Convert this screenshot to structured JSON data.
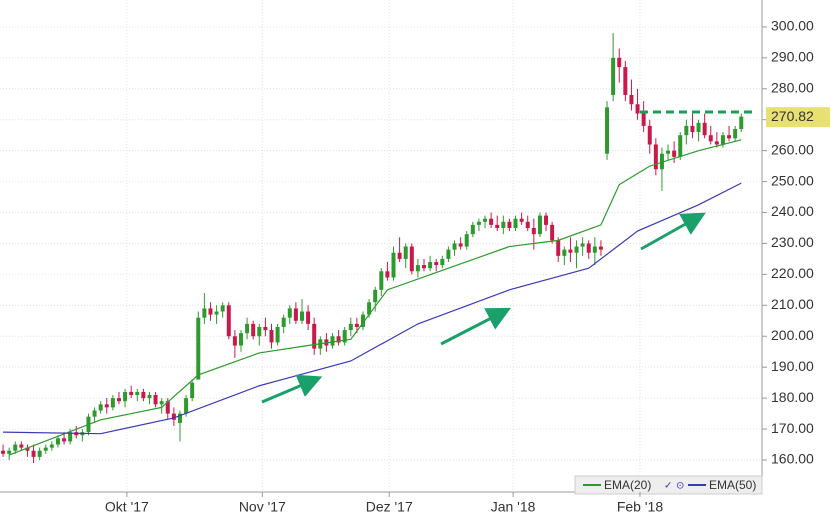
{
  "chart_data": {
    "type": "candlestick",
    "up_color": "#2e9a2e",
    "down_color": "#c8194b",
    "ylim": [
      149.65,
      308.7
    ],
    "yticks": [
      {
        "value": 160,
        "label": "160.00"
      },
      {
        "value": 170,
        "label": "170.00"
      },
      {
        "value": 180,
        "label": "180.00"
      },
      {
        "value": 190,
        "label": "190.00"
      },
      {
        "value": 200,
        "label": "200.00"
      },
      {
        "value": 210,
        "label": "210.00"
      },
      {
        "value": 220,
        "label": "220.00"
      },
      {
        "value": 230,
        "label": "230.00"
      },
      {
        "value": 240,
        "label": "240.00"
      },
      {
        "value": 250,
        "label": "250.00"
      },
      {
        "value": 260,
        "label": "260.00"
      },
      {
        "value": 270,
        "label": "270.00"
      },
      {
        "value": 280,
        "label": "280.00"
      },
      {
        "value": 290,
        "label": "290.00"
      },
      {
        "value": 300,
        "label": "300.00"
      }
    ],
    "xlim": [
      -0.5,
      124.4
    ],
    "xticks": [
      {
        "value": 20.3,
        "label": "Okt '17"
      },
      {
        "value": 42.5,
        "label": "Nov '17"
      },
      {
        "value": 63.3,
        "label": "Dez '17"
      },
      {
        "value": 83.6,
        "label": "Jan '18"
      },
      {
        "value": 104.4,
        "label": "Feb '18"
      }
    ],
    "grid": true,
    "last_price": {
      "value": 270.82,
      "label": "270.82"
    },
    "resistance": 272.5,
    "ohlc": [
      [
        163,
        165,
        161,
        162
      ],
      [
        162,
        164,
        160,
        163
      ],
      [
        163,
        166,
        162,
        165
      ],
      [
        165,
        166,
        163,
        164
      ],
      [
        164,
        165,
        161,
        163
      ],
      [
        163,
        165,
        159,
        161
      ],
      [
        161,
        164,
        160,
        163
      ],
      [
        163,
        165,
        162,
        164
      ],
      [
        164,
        166,
        163,
        165
      ],
      [
        165,
        168,
        164,
        167
      ],
      [
        167,
        169,
        165,
        166
      ],
      [
        166,
        170,
        165,
        169
      ],
      [
        169,
        171,
        167,
        168
      ],
      [
        168,
        170,
        166,
        169
      ],
      [
        169,
        175,
        168,
        174
      ],
      [
        174,
        177,
        172,
        176
      ],
      [
        176,
        179,
        175,
        178
      ],
      [
        178,
        180,
        175,
        177
      ],
      [
        177,
        181,
        176,
        180
      ],
      [
        180,
        182,
        178,
        179
      ],
      [
        179,
        183,
        177,
        182
      ],
      [
        182,
        184,
        180,
        181
      ],
      [
        181,
        183,
        179,
        182
      ],
      [
        182,
        183,
        179,
        180
      ],
      [
        180,
        182,
        178,
        181
      ],
      [
        181,
        182,
        177,
        178
      ],
      [
        178,
        180,
        175,
        179
      ],
      [
        179,
        180,
        173,
        175
      ],
      [
        175,
        177,
        171,
        173
      ],
      [
        172,
        176,
        166,
        175
      ],
      [
        175,
        181,
        174,
        180
      ],
      [
        180,
        186,
        179,
        185
      ],
      [
        186,
        208,
        186,
        206
      ],
      [
        206,
        214,
        204,
        209
      ],
      [
        209,
        211,
        205,
        207
      ],
      [
        207,
        210,
        204,
        208
      ],
      [
        208,
        211,
        206,
        210
      ],
      [
        210,
        211,
        199,
        200
      ],
      [
        200,
        202,
        193,
        197
      ],
      [
        197,
        202,
        195,
        201
      ],
      [
        201,
        206,
        199,
        204
      ],
      [
        204,
        205,
        199,
        200
      ],
      [
        200,
        204,
        197,
        203
      ],
      [
        203,
        206,
        200,
        202
      ],
      [
        202,
        204,
        196,
        198
      ],
      [
        198,
        204,
        197,
        203
      ],
      [
        203,
        207,
        201,
        206
      ],
      [
        206,
        210,
        204,
        209
      ],
      [
        209,
        211,
        204,
        205
      ],
      [
        205,
        212,
        204,
        208
      ],
      [
        208,
        210,
        202,
        204
      ],
      [
        204,
        206,
        194,
        196
      ],
      [
        196,
        200,
        194,
        199
      ],
      [
        199,
        201,
        195,
        197
      ],
      [
        197,
        201,
        196,
        200
      ],
      [
        200,
        202,
        197,
        198
      ],
      [
        198,
        203,
        197,
        202
      ],
      [
        202,
        206,
        200,
        204
      ],
      [
        204,
        206,
        201,
        203
      ],
      [
        203,
        208,
        202,
        207
      ],
      [
        207,
        212,
        206,
        211
      ],
      [
        211,
        216,
        208,
        215
      ],
      [
        215,
        222,
        213,
        221
      ],
      [
        221,
        224,
        218,
        219
      ],
      [
        219,
        229,
        218,
        227
      ],
      [
        227,
        232,
        224,
        225
      ],
      [
        225,
        230,
        222,
        229
      ],
      [
        229,
        230,
        220,
        221
      ],
      [
        221,
        225,
        219,
        223
      ],
      [
        223,
        225,
        221,
        222
      ],
      [
        222,
        226,
        221,
        224
      ],
      [
        224,
        225,
        221,
        223
      ],
      [
        223,
        226,
        222,
        225
      ],
      [
        225,
        229,
        224,
        228
      ],
      [
        228,
        231,
        226,
        230
      ],
      [
        230,
        232,
        228,
        229
      ],
      [
        229,
        234,
        228,
        233
      ],
      [
        233,
        237,
        232,
        236
      ],
      [
        236,
        238,
        234,
        237
      ],
      [
        237,
        239,
        235,
        238
      ],
      [
        238,
        240,
        235,
        236
      ],
      [
        236,
        239,
        234,
        235
      ],
      [
        235,
        239,
        233,
        237
      ],
      [
        237,
        238,
        234,
        235
      ],
      [
        235,
        239,
        234,
        238
      ],
      [
        238,
        240,
        236,
        237
      ],
      [
        237,
        239,
        234,
        235
      ],
      [
        235,
        238,
        228,
        233
      ],
      [
        233,
        240,
        232,
        239
      ],
      [
        239,
        240,
        234,
        236
      ],
      [
        236,
        237,
        230,
        231
      ],
      [
        231,
        232,
        224,
        226
      ],
      [
        226,
        229,
        223,
        228
      ],
      [
        228,
        232,
        224,
        227
      ],
      [
        227,
        231,
        222,
        229
      ],
      [
        229,
        232,
        226,
        230
      ],
      [
        230,
        231,
        225,
        227
      ],
      [
        227,
        232,
        223,
        229
      ],
      [
        229,
        231,
        226,
        228
      ],
      [
        259,
        276,
        257,
        274
      ],
      [
        278,
        298,
        276,
        290
      ],
      [
        290,
        293,
        282,
        287
      ],
      [
        287,
        289,
        276,
        278
      ],
      [
        278,
        283,
        273,
        275
      ],
      [
        275,
        280,
        270,
        272
      ],
      [
        272,
        276,
        266,
        268
      ],
      [
        268,
        270,
        259,
        262
      ],
      [
        262,
        264,
        252,
        254
      ],
      [
        254,
        261,
        247,
        259
      ],
      [
        259,
        262,
        257,
        260
      ],
      [
        260,
        263,
        256,
        258
      ],
      [
        258,
        266,
        257,
        265
      ],
      [
        265,
        270,
        262,
        268
      ],
      [
        268,
        272,
        264,
        266
      ],
      [
        266,
        270,
        263,
        269
      ],
      [
        269,
        272,
        264,
        265
      ],
      [
        265,
        268,
        262,
        263
      ],
      [
        263,
        266,
        261,
        262
      ],
      [
        262,
        266,
        261,
        265
      ],
      [
        265,
        268,
        263,
        264
      ],
      [
        264,
        268,
        263,
        267
      ],
      [
        267,
        272,
        266,
        271
      ]
    ],
    "series": [
      {
        "name": "EMA(20)",
        "color": "#2c9b2c",
        "x": [
          1,
          16,
          26,
          32,
          42,
          50,
          57,
          63,
          73,
          83,
          91,
          98,
          101,
          106,
          114,
          121
        ],
        "values": [
          161.6,
          173,
          177,
          187.5,
          194.6,
          197,
          199,
          215,
          222,
          229,
          231,
          236,
          249,
          255,
          260,
          263.5
        ]
      },
      {
        "name": "EMA(50)",
        "color": "#3a3ab8",
        "x": [
          0,
          16,
          28,
          42,
          57,
          68,
          83,
          96,
          100,
          104,
          114,
          121
        ],
        "values": [
          169,
          168.5,
          173.6,
          184,
          192,
          204,
          215,
          222,
          228,
          234,
          242.5,
          249.5
        ]
      }
    ]
  }
}
